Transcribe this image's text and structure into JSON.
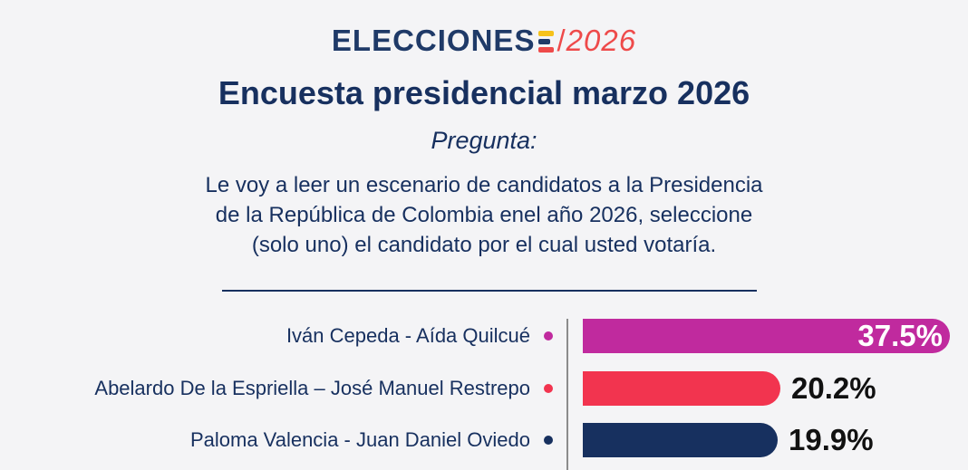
{
  "header": {
    "brand_word": "ELECCIONES",
    "brand_year": "2026",
    "title": "Encuesta presidencial marzo 2026",
    "question_label": "Pregunta",
    "question_lines": [
      "Le voy a leer un escenario de candidatos a la Presidencia",
      "de la República de Colombia enel año 2026, seleccione",
      "(solo uno) el candidato por el cual usted votaría."
    ]
  },
  "chart_data": {
    "type": "bar",
    "orientation": "horizontal",
    "categories": [
      "Iván Cepeda - Aída Quilcué",
      "Abelardo De la Espriella – José Manuel Restrepo",
      "Paloma Valencia - Juan Daniel Oviedo"
    ],
    "values": [
      37.5,
      20.2,
      19.9
    ],
    "value_labels": [
      "37.5%",
      "20.2%",
      "19.9%"
    ],
    "colors": [
      "#c02a9e",
      "#f2344f",
      "#17305f"
    ],
    "value_label_colors": [
      "#ffffff",
      "#111111",
      "#111111"
    ],
    "title": "",
    "xlabel": "",
    "ylabel": "",
    "xlim": [
      0,
      37.5
    ],
    "grid": false,
    "legend": "none"
  }
}
